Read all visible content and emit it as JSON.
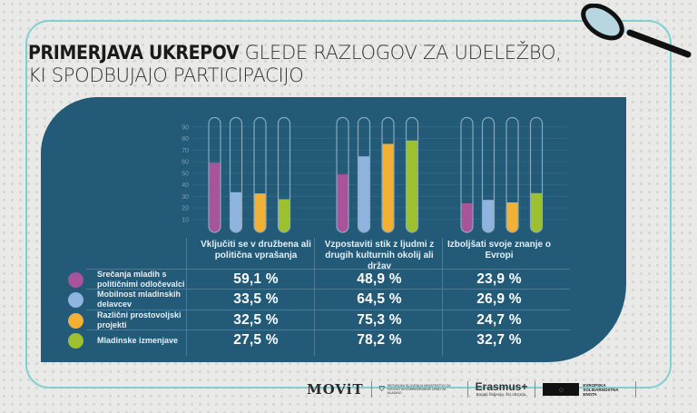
{
  "title": {
    "bold": "PRIMERJAVA UKREPOV",
    "line1_rest": " GLEDE RAZLOGOV ZA UDELEŽBO,",
    "line2": "KI SPODBUJAJO PARTICIPACIJO"
  },
  "chart_data": {
    "type": "bar",
    "title": "PRIMERJAVA UKREPOV GLEDE RAZLOGOV ZA UDELEŽBO, KI SPODBUJAJO PARTICIPACIJO",
    "categories": [
      "Vključiti se v družbena ali politična vprašanja",
      "Vzpostaviti stik z ljudmi z drugih kulturnih okolij ali držav",
      "Izboljšati svoje znanje o Evropi"
    ],
    "series": [
      {
        "name": "Srečanja mladih s političnimi odločevalci",
        "color": "#a8549a",
        "values": [
          59.1,
          48.9,
          23.9
        ],
        "labels": [
          "59,1 %",
          "48,9 %",
          "23,9 %"
        ]
      },
      {
        "name": "Mobilnost mladinskih delavcev",
        "color": "#8fb4e0",
        "values": [
          33.5,
          64.5,
          26.9
        ],
        "labels": [
          "33,5 %",
          "64,5 %",
          "26,9 %"
        ]
      },
      {
        "name": "Različni prostovoljski projekti",
        "color": "#f2b134",
        "values": [
          32.5,
          75.3,
          24.7
        ],
        "labels": [
          "32,5 %",
          "75,3 %",
          "24,7 %"
        ]
      },
      {
        "name": "Mladinske izmenjave",
        "color": "#9dc12e",
        "values": [
          27.5,
          78.2,
          32.7
        ],
        "labels": [
          "27,5 %",
          "78,2 %",
          "32,7 %"
        ]
      }
    ],
    "yticks": [
      "10",
      "20",
      "30",
      "40",
      "50",
      "60",
      "70",
      "80",
      "90"
    ],
    "ylim": [
      0,
      97
    ],
    "xlabel": "",
    "ylabel": "",
    "grid": true
  },
  "logos": {
    "movit": "MOViT",
    "ministry": "REPUBLIKA SLOVENIJA MINISTRSTVO ZA VZGOJO IN IZOBRAŽEVANJE URAD ZA MLADINO",
    "erasmus": "Erasmus+",
    "erasmus_sub": "Bogati življenja, širi obzorja.",
    "esn": "EVROPSKA SOLIDARNOSTNA ENOTA"
  }
}
